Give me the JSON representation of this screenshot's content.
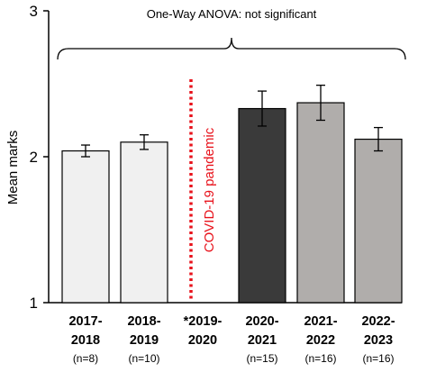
{
  "chart_data": {
    "type": "bar",
    "title": "",
    "xlabel": "",
    "ylabel": "Mean marks",
    "ylim": [
      1,
      3
    ],
    "yticks": [
      "1",
      "2",
      "3"
    ],
    "grid": false,
    "categories": [
      {
        "line1": "2017-",
        "line2": "2018",
        "n": "(n=8)"
      },
      {
        "line1": "2018-",
        "line2": "2019",
        "n": "(n=10)"
      },
      {
        "line1": "*2019-",
        "line2": "2020",
        "n": ""
      },
      {
        "line1": "2020-",
        "line2": "2021",
        "n": "(n=15)"
      },
      {
        "line1": "2021-",
        "line2": "2022",
        "n": "(n=16)"
      },
      {
        "line1": "2022-",
        "line2": "2023",
        "n": "(n=16)"
      }
    ],
    "values": [
      2.04,
      2.1,
      null,
      2.33,
      2.37,
      2.12
    ],
    "errors": [
      0.04,
      0.05,
      null,
      0.12,
      0.12,
      0.08
    ],
    "bar_colors": [
      "#f0f0f0",
      "#f0f0f0",
      null,
      "#3a3a3a",
      "#b0adab",
      "#b0adab"
    ],
    "annotations": {
      "anova": "One-Way ANOVA:  not significant",
      "covid": "COVID-19 pandemic",
      "covid_color": "#e8121b"
    }
  }
}
